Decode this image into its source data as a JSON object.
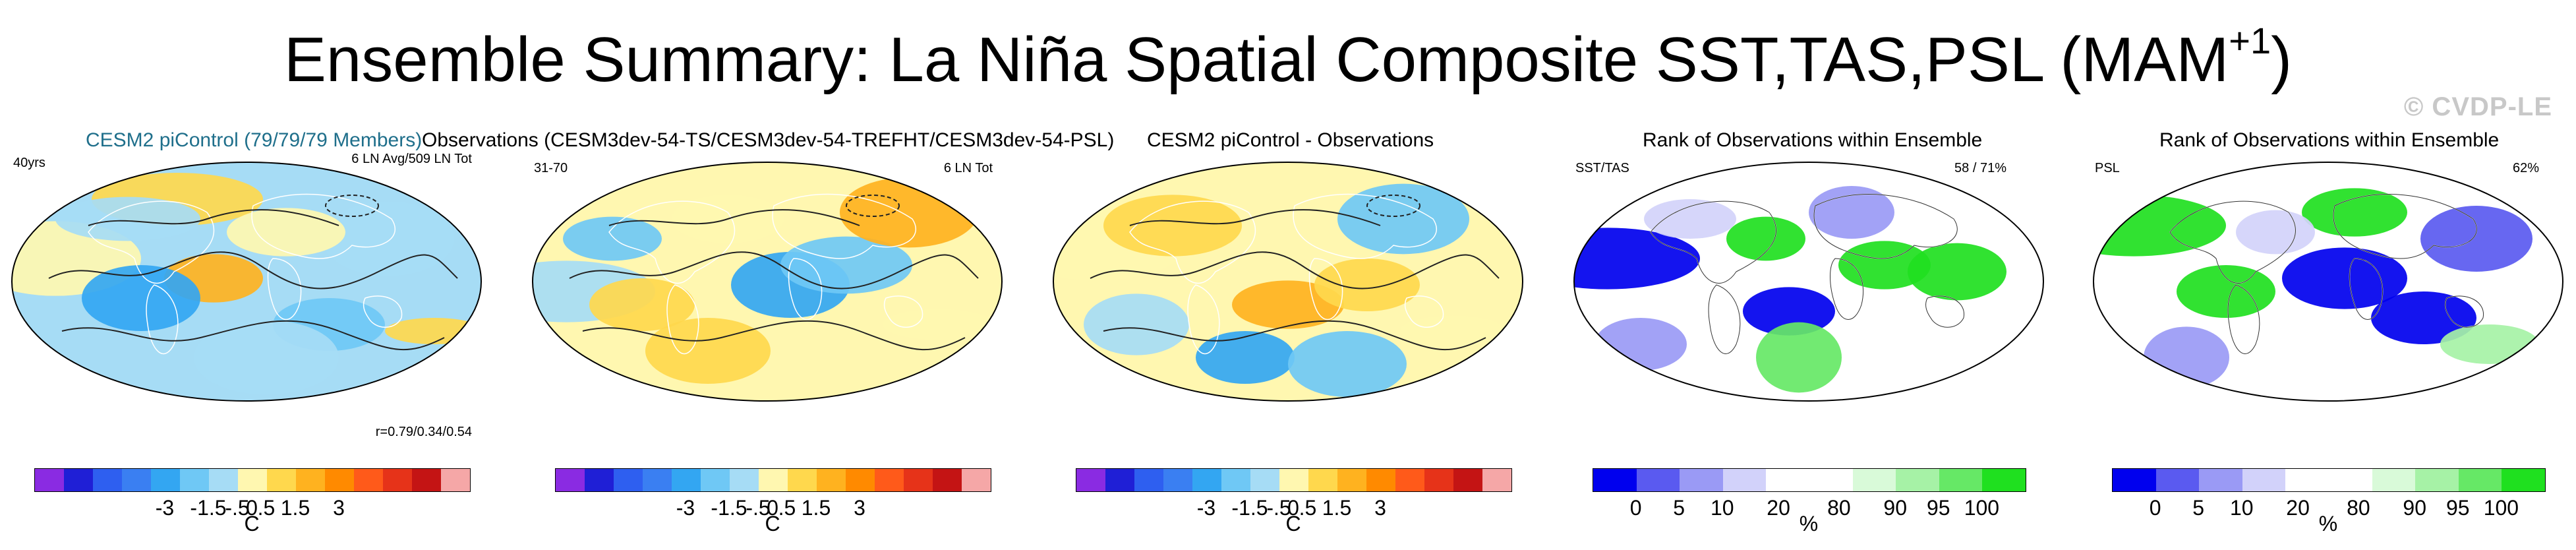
{
  "header": {
    "title": "Ensemble Summary: La Niña Spatial Composite SST,TAS,PSL (MAM",
    "superscript": "+1",
    "title_close": ")",
    "credit": "© CVDP-LE"
  },
  "panels": [
    {
      "title": "CESM2 piControl (79/79/79 Members)",
      "left_tag": "40yrs",
      "right_tag": "6 LN Avg/509 LN Tot",
      "stat": "r=0.79/0.34/0.54",
      "palette": "temp",
      "colorbar": {
        "colors": [
          "#8a2be2",
          "#1f1fd6",
          "#2e5ff0",
          "#3a7ff2",
          "#33a6f2",
          "#6fc8f5",
          "#a6dcf5",
          "#fff7b0",
          "#ffd84d",
          "#ffb21f",
          "#ff8a00",
          "#ff5a1a",
          "#e63319",
          "#c41414",
          "#f5a7a7"
        ],
        "ticks": [
          "-3",
          "-1.5",
          "-.5",
          "0",
          ".5",
          "1.5",
          "3"
        ],
        "unit": "C"
      }
    },
    {
      "title": "Observations (CESM3dev-54-TS/CESM3dev-54-TREFHT/CESM3dev-54-PSL)",
      "left_tag": "31-70",
      "right_tag": "6 LN Tot",
      "stat": "",
      "palette": "temp",
      "colorbar": {
        "colors": [
          "#8a2be2",
          "#1f1fd6",
          "#2e5ff0",
          "#3a7ff2",
          "#33a6f2",
          "#6fc8f5",
          "#a6dcf5",
          "#fff7b0",
          "#ffd84d",
          "#ffb21f",
          "#ff8a00",
          "#ff5a1a",
          "#e63319",
          "#c41414",
          "#f5a7a7"
        ],
        "ticks": [
          "-3",
          "-1.5",
          "-.5",
          "0",
          ".5",
          "1.5",
          "3"
        ],
        "unit": "C"
      }
    },
    {
      "title": "CESM2 piControl - Observations",
      "left_tag": "",
      "right_tag": "",
      "stat": "",
      "palette": "temp",
      "colorbar": {
        "colors": [
          "#8a2be2",
          "#1f1fd6",
          "#2e5ff0",
          "#3a7ff2",
          "#33a6f2",
          "#6fc8f5",
          "#a6dcf5",
          "#fff7b0",
          "#ffd84d",
          "#ffb21f",
          "#ff8a00",
          "#ff5a1a",
          "#e63319",
          "#c41414",
          "#f5a7a7"
        ],
        "ticks": [
          "-3",
          "-1.5",
          "-.5",
          "0",
          ".5",
          "1.5",
          "3"
        ],
        "unit": "C"
      }
    },
    {
      "title": "Rank of Observations within Ensemble",
      "left_tag": "SST/TAS",
      "right_tag": "58 /  71%",
      "stat": "",
      "palette": "rank",
      "colorbar": {
        "colors": [
          "#0000ee",
          "#5a5af0",
          "#9a9af5",
          "#d2d2fa",
          "#ffffff",
          "#ffffff",
          "#d9fad9",
          "#a6f2a6",
          "#66e866",
          "#1fe01f"
        ],
        "ticks": [
          "0",
          "5",
          "10",
          "20",
          "80",
          "90",
          "95",
          "100"
        ],
        "unit": "%"
      }
    },
    {
      "title": "Rank of Observations within Ensemble",
      "left_tag": "PSL",
      "right_tag": "62%",
      "stat": "",
      "palette": "rank",
      "colorbar": {
        "colors": [
          "#0000ee",
          "#5a5af0",
          "#9a9af5",
          "#d2d2fa",
          "#ffffff",
          "#ffffff",
          "#d9fad9",
          "#a6f2a6",
          "#66e866",
          "#1fe01f"
        ],
        "ticks": [
          "0",
          "5",
          "10",
          "20",
          "80",
          "90",
          "95",
          "100"
        ],
        "unit": "%"
      }
    }
  ]
}
